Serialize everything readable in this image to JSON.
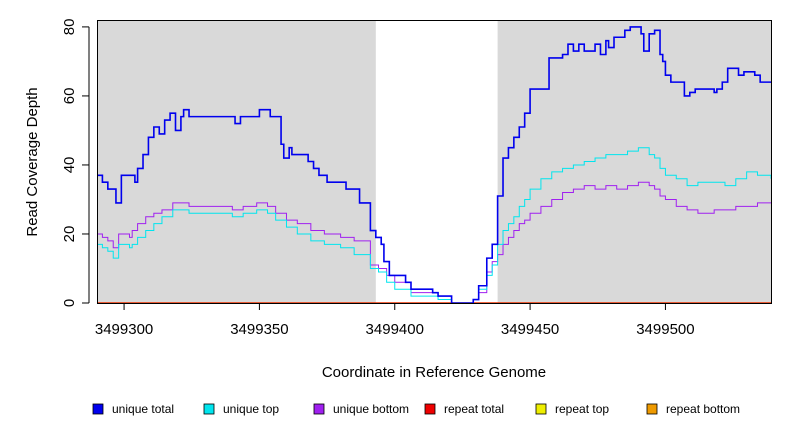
{
  "chart_data": {
    "type": "line",
    "step": true,
    "xlabel": "Coordinate in Reference Genome",
    "ylabel": "Read Coverage Depth",
    "xlim": [
      3499290,
      3499539
    ],
    "ylim": [
      0,
      82
    ],
    "xticks": [
      3499300,
      3499350,
      3499400,
      3499450,
      3499500
    ],
    "yticks": [
      0,
      20,
      40,
      60,
      80
    ],
    "shaded_regions": [
      {
        "x0": 3499290,
        "x1": 3499393,
        "color": "#d9d9d9"
      },
      {
        "x0": 3499438,
        "x1": 3499539,
        "color": "#d9d9d9"
      }
    ],
    "series": [
      {
        "name": "unique total",
        "color": "#0000ee",
        "stroke_width": 1.6,
        "points": [
          [
            3499290,
            37
          ],
          [
            3499292,
            35
          ],
          [
            3499294,
            33
          ],
          [
            3499297,
            29
          ],
          [
            3499299,
            37
          ],
          [
            3499304,
            35
          ],
          [
            3499305,
            39
          ],
          [
            3499307,
            43
          ],
          [
            3499309,
            48
          ],
          [
            3499311,
            51
          ],
          [
            3499313,
            49
          ],
          [
            3499315,
            53
          ],
          [
            3499317,
            55
          ],
          [
            3499319,
            50
          ],
          [
            3499321,
            54
          ],
          [
            3499322,
            56
          ],
          [
            3499324,
            54
          ],
          [
            3499341,
            52
          ],
          [
            3499343,
            54
          ],
          [
            3499350,
            56
          ],
          [
            3499354,
            54
          ],
          [
            3499358,
            46
          ],
          [
            3499359,
            42
          ],
          [
            3499361,
            45
          ],
          [
            3499362,
            43
          ],
          [
            3499368,
            41
          ],
          [
            3499370,
            39
          ],
          [
            3499372,
            37
          ],
          [
            3499375,
            35
          ],
          [
            3499382,
            33
          ],
          [
            3499387,
            29
          ],
          [
            3499391,
            21
          ],
          [
            3499393,
            19
          ],
          [
            3499395,
            17
          ],
          [
            3499396,
            12
          ],
          [
            3499398,
            8
          ],
          [
            3499404,
            6
          ],
          [
            3499406,
            4
          ],
          [
            3499414,
            3
          ],
          [
            3499416,
            2
          ],
          [
            3499421,
            0
          ],
          [
            3499426,
            0
          ],
          [
            3499429,
            1
          ],
          [
            3499431,
            5
          ],
          [
            3499434,
            13
          ],
          [
            3499436,
            17
          ],
          [
            3499438,
            31
          ],
          [
            3499440,
            42
          ],
          [
            3499442,
            45
          ],
          [
            3499444,
            48
          ],
          [
            3499446,
            51
          ],
          [
            3499448,
            55
          ],
          [
            3499450,
            62
          ],
          [
            3499457,
            71
          ],
          [
            3499462,
            72
          ],
          [
            3499464,
            75
          ],
          [
            3499466,
            73
          ],
          [
            3499468,
            75
          ],
          [
            3499470,
            73
          ],
          [
            3499474,
            75
          ],
          [
            3499476,
            72
          ],
          [
            3499478,
            76
          ],
          [
            3499479,
            74
          ],
          [
            3499481,
            77
          ],
          [
            3499485,
            79
          ],
          [
            3499487,
            80
          ],
          [
            3499491,
            78
          ],
          [
            3499492,
            73
          ],
          [
            3499494,
            78
          ],
          [
            3499496,
            79
          ],
          [
            3499498,
            72
          ],
          [
            3499499,
            70
          ],
          [
            3499500,
            66
          ],
          [
            3499502,
            64
          ],
          [
            3499507,
            60
          ],
          [
            3499509,
            61
          ],
          [
            3499511,
            62
          ],
          [
            3499518,
            61
          ],
          [
            3499519,
            62
          ],
          [
            3499521,
            64
          ],
          [
            3499523,
            68
          ],
          [
            3499527,
            66
          ],
          [
            3499529,
            67
          ],
          [
            3499533,
            66
          ],
          [
            3499535,
            64
          ],
          [
            3499539,
            64
          ]
        ]
      },
      {
        "name": "unique top",
        "color": "#00e5ee",
        "stroke_width": 1,
        "points": [
          [
            3499290,
            17
          ],
          [
            3499292,
            16
          ],
          [
            3499294,
            15
          ],
          [
            3499296,
            13
          ],
          [
            3499298,
            17
          ],
          [
            3499302,
            16
          ],
          [
            3499303,
            17
          ],
          [
            3499305,
            19
          ],
          [
            3499308,
            21
          ],
          [
            3499311,
            23
          ],
          [
            3499314,
            25
          ],
          [
            3499318,
            27
          ],
          [
            3499324,
            26
          ],
          [
            3499340,
            25
          ],
          [
            3499344,
            26
          ],
          [
            3499349,
            27
          ],
          [
            3499353,
            26
          ],
          [
            3499356,
            24
          ],
          [
            3499360,
            22
          ],
          [
            3499364,
            20
          ],
          [
            3499369,
            18
          ],
          [
            3499374,
            17
          ],
          [
            3499380,
            16
          ],
          [
            3499385,
            14
          ],
          [
            3499391,
            10
          ],
          [
            3499394,
            9
          ],
          [
            3499397,
            6
          ],
          [
            3499400,
            4
          ],
          [
            3499406,
            2
          ],
          [
            3499416,
            1
          ],
          [
            3499421,
            0
          ],
          [
            3499426,
            0
          ],
          [
            3499429,
            1
          ],
          [
            3499431,
            4
          ],
          [
            3499434,
            8
          ],
          [
            3499436,
            11
          ],
          [
            3499438,
            17
          ],
          [
            3499440,
            21
          ],
          [
            3499442,
            23
          ],
          [
            3499444,
            25
          ],
          [
            3499446,
            28
          ],
          [
            3499448,
            30
          ],
          [
            3499450,
            33
          ],
          [
            3499454,
            36
          ],
          [
            3499458,
            38
          ],
          [
            3499462,
            39
          ],
          [
            3499466,
            40
          ],
          [
            3499470,
            41
          ],
          [
            3499474,
            42
          ],
          [
            3499478,
            43
          ],
          [
            3499482,
            43
          ],
          [
            3499486,
            44
          ],
          [
            3499490,
            45
          ],
          [
            3499494,
            43
          ],
          [
            3499496,
            42
          ],
          [
            3499498,
            39
          ],
          [
            3499500,
            37
          ],
          [
            3499504,
            36
          ],
          [
            3499508,
            34
          ],
          [
            3499512,
            35
          ],
          [
            3499518,
            35
          ],
          [
            3499522,
            34
          ],
          [
            3499526,
            36
          ],
          [
            3499530,
            38
          ],
          [
            3499534,
            37
          ],
          [
            3499539,
            36
          ]
        ]
      },
      {
        "name": "unique bottom",
        "color": "#a020f0",
        "stroke_width": 1,
        "points": [
          [
            3499290,
            20
          ],
          [
            3499292,
            19
          ],
          [
            3499294,
            18
          ],
          [
            3499296,
            16
          ],
          [
            3499298,
            20
          ],
          [
            3499302,
            19
          ],
          [
            3499303,
            21
          ],
          [
            3499305,
            23
          ],
          [
            3499308,
            25
          ],
          [
            3499311,
            26
          ],
          [
            3499314,
            27
          ],
          [
            3499318,
            29
          ],
          [
            3499324,
            28
          ],
          [
            3499340,
            27
          ],
          [
            3499344,
            28
          ],
          [
            3499349,
            29
          ],
          [
            3499353,
            28
          ],
          [
            3499356,
            26
          ],
          [
            3499360,
            24
          ],
          [
            3499364,
            23
          ],
          [
            3499369,
            21
          ],
          [
            3499374,
            20
          ],
          [
            3499380,
            19
          ],
          [
            3499385,
            18
          ],
          [
            3499391,
            11
          ],
          [
            3499394,
            10
          ],
          [
            3499397,
            8
          ],
          [
            3499400,
            6
          ],
          [
            3499406,
            3
          ],
          [
            3499416,
            2
          ],
          [
            3499421,
            0
          ],
          [
            3499426,
            0
          ],
          [
            3499429,
            1
          ],
          [
            3499431,
            3
          ],
          [
            3499434,
            9
          ],
          [
            3499436,
            12
          ],
          [
            3499438,
            14
          ],
          [
            3499440,
            17
          ],
          [
            3499442,
            19
          ],
          [
            3499444,
            21
          ],
          [
            3499446,
            23
          ],
          [
            3499448,
            24
          ],
          [
            3499450,
            26
          ],
          [
            3499454,
            28
          ],
          [
            3499458,
            30
          ],
          [
            3499462,
            32
          ],
          [
            3499466,
            33
          ],
          [
            3499470,
            34
          ],
          [
            3499474,
            33
          ],
          [
            3499478,
            34
          ],
          [
            3499482,
            33
          ],
          [
            3499486,
            34
          ],
          [
            3499490,
            35
          ],
          [
            3499494,
            34
          ],
          [
            3499496,
            33
          ],
          [
            3499498,
            31
          ],
          [
            3499500,
            30
          ],
          [
            3499504,
            28
          ],
          [
            3499508,
            27
          ],
          [
            3499512,
            26
          ],
          [
            3499518,
            27
          ],
          [
            3499522,
            27
          ],
          [
            3499526,
            28
          ],
          [
            3499530,
            28
          ],
          [
            3499534,
            29
          ],
          [
            3499539,
            29
          ]
        ]
      },
      {
        "name": "repeat total",
        "color": "#ee0000",
        "stroke_width": 1,
        "points": [
          [
            3499290,
            0
          ],
          [
            3499539,
            0
          ]
        ]
      },
      {
        "name": "repeat top",
        "color": "#eeee00",
        "stroke_width": 1,
        "points": [
          [
            3499290,
            0
          ],
          [
            3499539,
            0
          ]
        ]
      },
      {
        "name": "repeat bottom",
        "color": "#ee9a00",
        "stroke_width": 1.6,
        "points": [
          [
            3499290,
            0
          ],
          [
            3499539,
            0
          ]
        ]
      }
    ]
  }
}
